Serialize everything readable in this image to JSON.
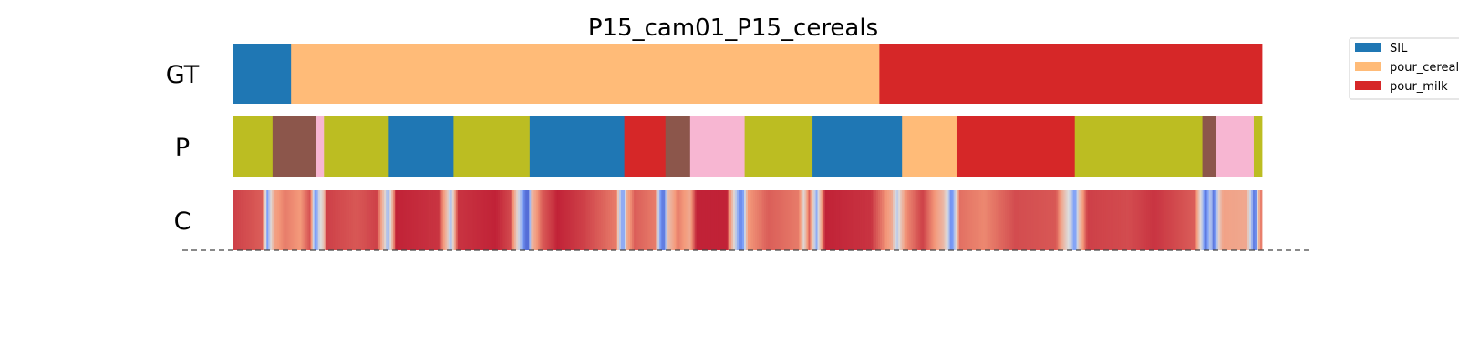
{
  "chart_data": {
    "type": "segmentation-timeline",
    "title": "P15_cam01_P15_cereals",
    "x_range": [
      0,
      1
    ],
    "rows": [
      {
        "label": "GT",
        "segments": [
          {
            "start": 0.0,
            "end": 0.056,
            "color": "#1f77b4"
          },
          {
            "start": 0.056,
            "end": 0.628,
            "color": "#ffbb78"
          },
          {
            "start": 0.628,
            "end": 1.0,
            "color": "#d62728"
          }
        ]
      },
      {
        "label": "P",
        "segments": [
          {
            "start": 0.0,
            "end": 0.038,
            "color": "#bcbd22"
          },
          {
            "start": 0.038,
            "end": 0.08,
            "color": "#8c564b"
          },
          {
            "start": 0.08,
            "end": 0.088,
            "color": "#f7b6d2"
          },
          {
            "start": 0.088,
            "end": 0.151,
            "color": "#bcbd22"
          },
          {
            "start": 0.151,
            "end": 0.214,
            "color": "#1f77b4"
          },
          {
            "start": 0.214,
            "end": 0.288,
            "color": "#bcbd22"
          },
          {
            "start": 0.288,
            "end": 0.38,
            "color": "#1f77b4"
          },
          {
            "start": 0.38,
            "end": 0.42,
            "color": "#d62728"
          },
          {
            "start": 0.42,
            "end": 0.444,
            "color": "#8c564b"
          },
          {
            "start": 0.444,
            "end": 0.497,
            "color": "#f7b6d2"
          },
          {
            "start": 0.497,
            "end": 0.563,
            "color": "#bcbd22"
          },
          {
            "start": 0.563,
            "end": 0.65,
            "color": "#1f77b4"
          },
          {
            "start": 0.65,
            "end": 0.703,
            "color": "#ffbb78"
          },
          {
            "start": 0.703,
            "end": 0.818,
            "color": "#d62728"
          },
          {
            "start": 0.818,
            "end": 0.942,
            "color": "#bcbd22"
          },
          {
            "start": 0.942,
            "end": 0.955,
            "color": "#8c564b"
          },
          {
            "start": 0.955,
            "end": 0.992,
            "color": "#f7b6d2"
          },
          {
            "start": 0.992,
            "end": 1.0,
            "color": "#bcbd22"
          }
        ]
      },
      {
        "label": "C",
        "colormap": "coolwarm",
        "value_range": [
          0,
          1
        ],
        "breakpoints": [
          [
            0.0,
            0.9
          ],
          [
            0.028,
            0.85
          ],
          [
            0.031,
            0.55
          ],
          [
            0.033,
            0.25
          ],
          [
            0.036,
            0.5
          ],
          [
            0.04,
            0.72
          ],
          [
            0.05,
            0.8
          ],
          [
            0.065,
            0.75
          ],
          [
            0.075,
            0.88
          ],
          [
            0.078,
            0.4
          ],
          [
            0.08,
            0.2
          ],
          [
            0.083,
            0.45
          ],
          [
            0.088,
            0.6
          ],
          [
            0.09,
            0.9
          ],
          [
            0.12,
            0.86
          ],
          [
            0.14,
            0.9
          ],
          [
            0.148,
            0.5
          ],
          [
            0.15,
            0.3
          ],
          [
            0.153,
            0.55
          ],
          [
            0.158,
            0.95
          ],
          [
            0.2,
            0.92
          ],
          [
            0.208,
            0.6
          ],
          [
            0.211,
            0.35
          ],
          [
            0.214,
            0.6
          ],
          [
            0.218,
            0.92
          ],
          [
            0.255,
            0.95
          ],
          [
            0.27,
            0.88
          ],
          [
            0.284,
            0.1
          ],
          [
            0.287,
            0.1
          ],
          [
            0.29,
            0.65
          ],
          [
            0.3,
            0.85
          ],
          [
            0.315,
            0.95
          ],
          [
            0.34,
            0.9
          ],
          [
            0.372,
            0.8
          ],
          [
            0.377,
            0.3
          ],
          [
            0.38,
            0.3
          ],
          [
            0.383,
            0.7
          ],
          [
            0.39,
            0.85
          ],
          [
            0.41,
            0.8
          ],
          [
            0.416,
            0.15
          ],
          [
            0.419,
            0.15
          ],
          [
            0.422,
            0.6
          ],
          [
            0.432,
            0.8
          ],
          [
            0.444,
            0.7
          ],
          [
            0.45,
            0.95
          ],
          [
            0.48,
            0.95
          ],
          [
            0.492,
            0.2
          ],
          [
            0.495,
            0.2
          ],
          [
            0.5,
            0.75
          ],
          [
            0.52,
            0.85
          ],
          [
            0.55,
            0.8
          ],
          [
            0.555,
            0.5
          ],
          [
            0.557,
            0.7
          ],
          [
            0.56,
            0.85
          ],
          [
            0.563,
            0.6
          ],
          [
            0.567,
            0.3
          ],
          [
            0.57,
            0.6
          ],
          [
            0.575,
            0.95
          ],
          [
            0.62,
            0.92
          ],
          [
            0.64,
            0.7
          ],
          [
            0.645,
            0.4
          ],
          [
            0.65,
            0.65
          ],
          [
            0.655,
            0.78
          ],
          [
            0.67,
            0.9
          ],
          [
            0.69,
            0.65
          ],
          [
            0.695,
            0.45
          ],
          [
            0.698,
            0.15
          ],
          [
            0.703,
            0.55
          ],
          [
            0.706,
            0.82
          ],
          [
            0.73,
            0.78
          ],
          [
            0.76,
            0.88
          ],
          [
            0.8,
            0.86
          ],
          [
            0.815,
            0.4
          ],
          [
            0.818,
            0.2
          ],
          [
            0.822,
            0.6
          ],
          [
            0.83,
            0.9
          ],
          [
            0.87,
            0.88
          ],
          [
            0.895,
            0.92
          ],
          [
            0.935,
            0.85
          ],
          [
            0.942,
            0.4
          ],
          [
            0.945,
            0.1
          ],
          [
            0.95,
            0.45
          ],
          [
            0.953,
            0.1
          ],
          [
            0.958,
            0.55
          ],
          [
            0.962,
            0.72
          ],
          [
            0.985,
            0.7
          ],
          [
            0.99,
            0.35
          ],
          [
            0.993,
            0.05
          ],
          [
            0.996,
            0.6
          ],
          [
            1.0,
            0.85
          ]
        ]
      }
    ],
    "legend": {
      "placement": "top-right",
      "entries": [
        {
          "label": "SIL",
          "color": "#1f77b4"
        },
        {
          "label": "pour_cereals",
          "color": "#ffbb78"
        },
        {
          "label": "pour_milk",
          "color": "#d62728"
        }
      ]
    },
    "baseline": "dashed"
  }
}
